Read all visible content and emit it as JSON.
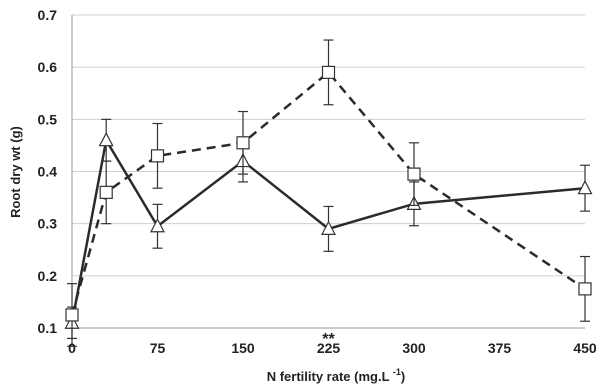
{
  "chart_data": {
    "type": "line",
    "xlabel": "N fertility rate (mg.L ",
    "xlabel_sup": "-1",
    "xlabel_tail": ")",
    "ylabel": "Root dry wt (g)",
    "ylim": [
      0.1,
      0.7
    ],
    "yticks": [
      "0.1",
      "0.2",
      "0.3",
      "0.4",
      "0.5",
      "0.6",
      "0.7"
    ],
    "xlim": [
      0,
      450
    ],
    "xticks": [
      "0",
      "75",
      "150",
      "225",
      "300",
      "375",
      "450"
    ],
    "grid": "horizontal",
    "annotation": {
      "text": "**",
      "x": 225
    },
    "series": [
      {
        "style": "solid",
        "marker": "triangle",
        "x": [
          0,
          30,
          75,
          150,
          225,
          300,
          450
        ],
        "y": [
          0.11,
          0.46,
          0.295,
          0.42,
          0.29,
          0.338,
          0.368
        ],
        "err": [
          0.03,
          0.04,
          0.042,
          0.04,
          0.043,
          0.042,
          0.044
        ]
      },
      {
        "style": "dashed",
        "marker": "square",
        "x": [
          0,
          30,
          75,
          150,
          225,
          300,
          450
        ],
        "y": [
          0.125,
          0.36,
          0.43,
          0.455,
          0.59,
          0.395,
          0.175
        ],
        "err": [
          0.06,
          0.06,
          0.062,
          0.06,
          0.062,
          0.06,
          0.062
        ]
      }
    ]
  }
}
